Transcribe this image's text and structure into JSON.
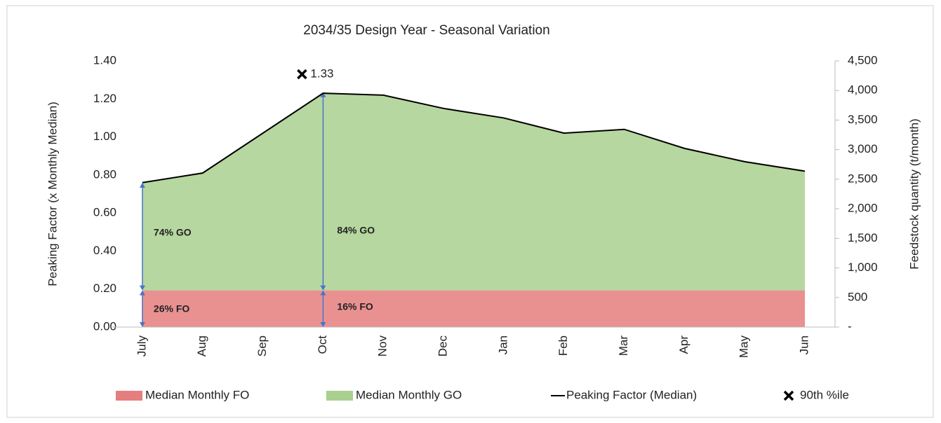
{
  "chart_data": {
    "type": "area",
    "title": "2034/35 Design Year - Seasonal Variation",
    "y_label": "Peaking Factor (x Monthly Median)",
    "y2_label": "Feedstock quantity (t/month)",
    "categories": [
      "July",
      "Aug",
      "Sep",
      "Oct",
      "Nov",
      "Dec",
      "Jan",
      "Feb",
      "Mar",
      "Apr",
      "May",
      "Jun"
    ],
    "series": [
      {
        "name": "Median Monthly FO",
        "type": "area",
        "axis": "y2",
        "color": "#e57e7e",
        "values": [
          620,
          620,
          620,
          620,
          620,
          620,
          620,
          620,
          620,
          620,
          620,
          620
        ]
      },
      {
        "name": "Median Monthly GO",
        "type": "area",
        "axis": "y2",
        "color": "#a9d08e",
        "values": [
          1820,
          2000,
          2660,
          3350,
          3290,
          3060,
          2920,
          2670,
          2710,
          2390,
          2190,
          2010
        ]
      },
      {
        "name": "Peaking Factor (Median)",
        "type": "line",
        "color": "#000000",
        "values": [
          0.76,
          0.81,
          1.02,
          1.23,
          1.22,
          1.15,
          1.1,
          1.02,
          1.04,
          0.94,
          0.87,
          0.82
        ]
      },
      {
        "name": "90th %ile",
        "type": "scatter",
        "marker": "x",
        "color": "#000000",
        "values": [
          null,
          null,
          null,
          1.33,
          null,
          null,
          null,
          null,
          null,
          null,
          null,
          null
        ]
      }
    ],
    "annotations": [
      "74% GO",
      "26% FO",
      "84% GO",
      "16% FO"
    ],
    "ylim": [
      0,
      1.4
    ],
    "yticks": [
      {
        "value": 0,
        "label": "0.00"
      },
      {
        "value": 0.2,
        "label": "0.20"
      },
      {
        "value": 0.4,
        "label": "0.40"
      },
      {
        "value": 0.6,
        "label": "0.60"
      },
      {
        "value": 0.8,
        "label": "0.80"
      },
      {
        "value": 1.0,
        "label": "1.00"
      },
      {
        "value": 1.2,
        "label": "1.20"
      },
      {
        "value": 1.4,
        "label": "1.40"
      }
    ],
    "y2lim": [
      0,
      4500
    ],
    "y2ticks": [
      {
        "value": 0,
        "label": "-"
      },
      500,
      {
        "value": 1000,
        "label": "1,000"
      },
      {
        "value": 1500,
        "label": "1,500"
      },
      {
        "value": 2000,
        "label": "2,000"
      },
      {
        "value": 2500,
        "label": "2,500"
      },
      {
        "value": 3000,
        "label": "3,000"
      },
      {
        "value": 3500,
        "label": "3,500"
      },
      {
        "value": 4000,
        "label": "4,000"
      },
      {
        "value": 4500,
        "label": "4,500"
      }
    ],
    "legend": "bottom"
  }
}
